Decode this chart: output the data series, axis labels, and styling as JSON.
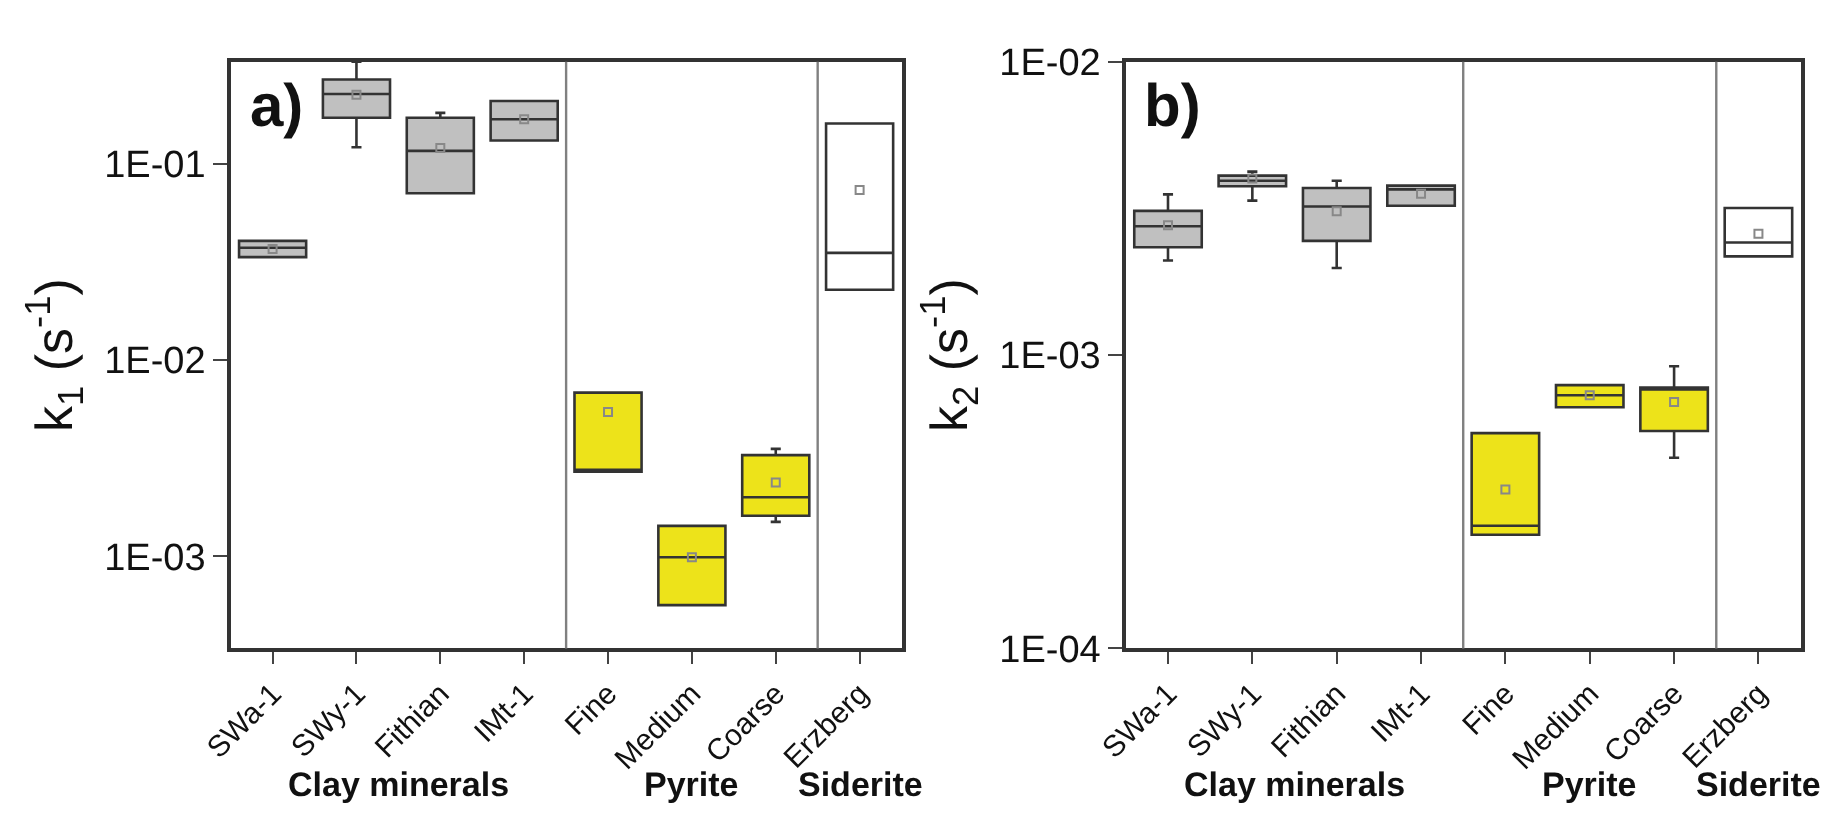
{
  "chart_data": [
    {
      "type": "box",
      "title": "a)",
      "ylabel": "k$_{1}$ (s$^{-1}$)",
      "log": true,
      "categories": [
        "SWa-1",
        "SWy-1",
        "Fithian",
        "IMt-1",
        "Fine",
        "Medium",
        "Coarse",
        "Erzberg"
      ],
      "colors": [
        "#c0c0c0",
        "#c0c0c0",
        "#c0c0c0",
        "#c0c0c0",
        "#ede31a",
        "#ede31a",
        "#ede31a",
        "#ffffff"
      ],
      "ylim": [
        0.00034,
        0.33
      ],
      "yticks": [
        {
          "value": 0.001,
          "label": "1E-03"
        },
        {
          "value": 0.01,
          "label": "1E-02"
        },
        {
          "value": 0.1,
          "label": "1E-01"
        }
      ],
      "annotations": [
        "Clay minerals",
        "Pyrite",
        "Siderite"
      ],
      "boxes": [
        {
          "low": 0.0334,
          "q1": 0.0334,
          "median": 0.0373,
          "q3": 0.0404,
          "high": 0.0404,
          "mean": 0.0367
        },
        {
          "low": 0.121,
          "q1": 0.171,
          "median": 0.226,
          "q3": 0.268,
          "high": 0.33,
          "mean": 0.224
        },
        {
          "low": 0.0706,
          "q1": 0.0706,
          "median": 0.116,
          "q3": 0.171,
          "high": 0.181,
          "mean": 0.12
        },
        {
          "low": 0.131,
          "q1": 0.131,
          "median": 0.168,
          "q3": 0.208,
          "high": 0.208,
          "mean": 0.168
        },
        {
          "low": 0.0027,
          "q1": 0.0027,
          "median": 0.0027,
          "q3": 0.00682,
          "high": 0.00682,
          "mean": 0.00543
        },
        {
          "low": 0.000565,
          "q1": 0.000565,
          "median": 0.00099,
          "q3": 0.00143,
          "high": 0.00143,
          "mean": 0.00099
        },
        {
          "low": 0.0015,
          "q1": 0.00161,
          "median": 0.002,
          "q3": 0.00328,
          "high": 0.00353,
          "mean": 0.00238
        },
        {
          "low": 0.0228,
          "q1": 0.0228,
          "median": 0.0351,
          "q3": 0.16,
          "high": 0.16,
          "mean": 0.0733
        }
      ]
    },
    {
      "type": "box",
      "title": "b)",
      "ylabel": "k$_{2}$ (s$^{-1}$)",
      "log": true,
      "categories": [
        "SWa-1",
        "SWy-1",
        "Fithian",
        "IMt-1",
        "Fine",
        "Medium",
        "Coarse",
        "Erzberg"
      ],
      "colors": [
        "#c0c0c0",
        "#c0c0c0",
        "#c0c0c0",
        "#c0c0c0",
        "#ede31a",
        "#ede31a",
        "#ede31a",
        "#ffffff"
      ],
      "ylim": [
        0.0001,
        0.01
      ],
      "yticks": [
        {
          "value": 0.0001,
          "label": "1E-04"
        },
        {
          "value": 0.001,
          "label": "1E-03"
        },
        {
          "value": 0.01,
          "label": "1E-02"
        }
      ],
      "annotations": [
        "Clay minerals",
        "Pyrite",
        "Siderite"
      ],
      "boxes": [
        {
          "low": 0.0021,
          "q1": 0.00233,
          "median": 0.00275,
          "q3": 0.0031,
          "high": 0.00353,
          "mean": 0.00277
        },
        {
          "low": 0.00336,
          "q1": 0.00376,
          "median": 0.00393,
          "q3": 0.00409,
          "high": 0.00422,
          "mean": 0.004
        },
        {
          "low": 0.00198,
          "q1": 0.00245,
          "median": 0.00321,
          "q3": 0.00371,
          "high": 0.00393,
          "mean": 0.00309
        },
        {
          "low": 0.00323,
          "q1": 0.00323,
          "median": 0.00367,
          "q3": 0.00378,
          "high": 0.00378,
          "mean": 0.00355
        },
        {
          "low": 0.000244,
          "q1": 0.000244,
          "median": 0.000262,
          "q3": 0.000542,
          "high": 0.000542,
          "mean": 0.000348
        },
        {
          "low": 0.000664,
          "q1": 0.000664,
          "median": 0.00073,
          "q3": 0.00079,
          "high": 0.00079,
          "mean": 0.00073
        },
        {
          "low": 0.000447,
          "q1": 0.000551,
          "median": 0.00077,
          "q3": 0.000775,
          "high": 0.000916,
          "mean": 0.000692
        },
        {
          "low": 0.00217,
          "q1": 0.00217,
          "median": 0.00242,
          "q3": 0.00317,
          "high": 0.00317,
          "mean": 0.00259
        }
      ]
    }
  ]
}
